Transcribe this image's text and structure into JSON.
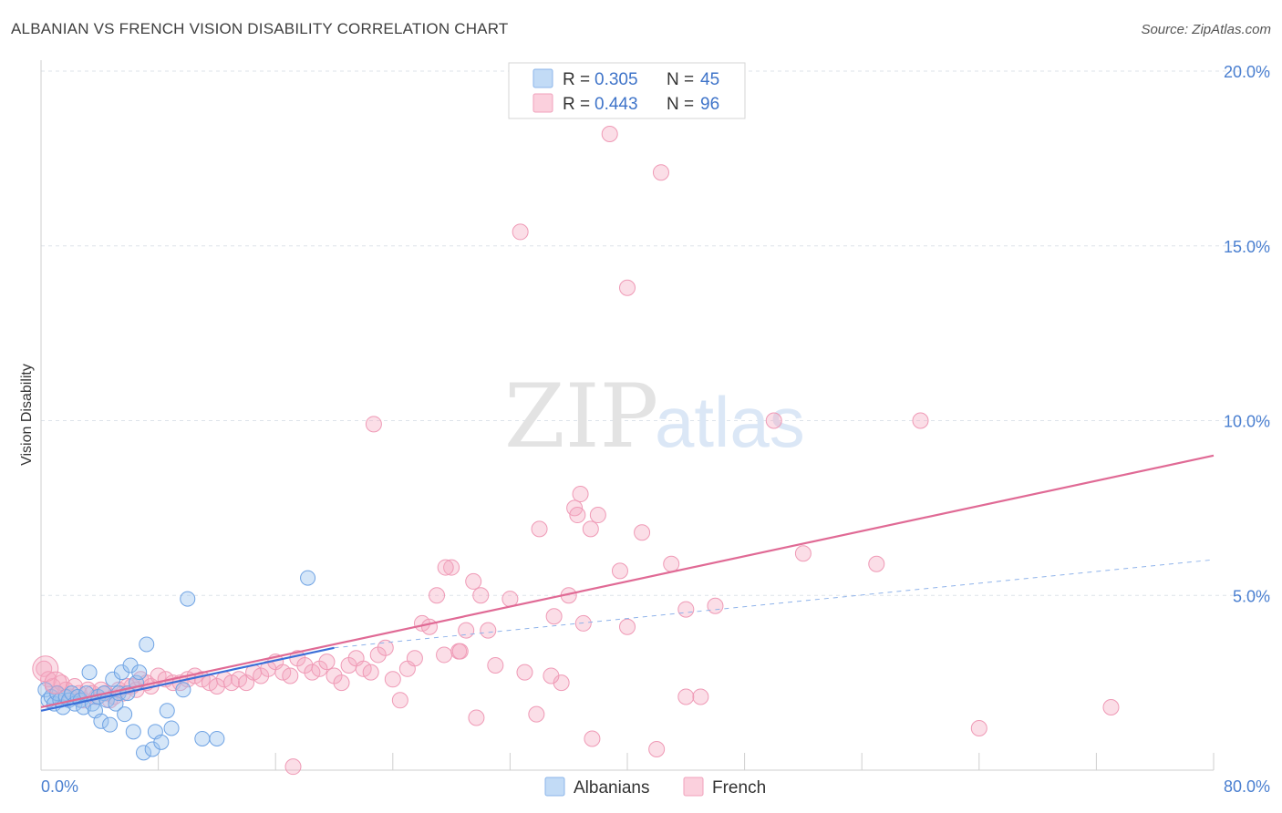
{
  "title": "ALBANIAN VS FRENCH VISION DISABILITY CORRELATION CHART",
  "source": "Source: ZipAtlas.com",
  "watermark": {
    "zip": "ZIP",
    "atlas": "atlas"
  },
  "legend": {
    "r_label": "R =",
    "n_label": "N =",
    "rows": [
      {
        "r": "0.305",
        "n": "45",
        "color": "#9cc3ef"
      },
      {
        "r": "0.443",
        "n": "96",
        "color": "#f5a9c0"
      }
    ]
  },
  "bottom_legend": [
    {
      "label": "Albanians",
      "color": "#9cc3ef"
    },
    {
      "label": "French",
      "color": "#f5a9c0"
    }
  ],
  "colors": {
    "blue_line": "#3a6fd8",
    "pink_line": "#e06a95",
    "grid": "#dde3ea"
  },
  "chart_data": {
    "type": "scatter",
    "xlabel": "",
    "ylabel": "Vision Disability",
    "xlim": [
      0,
      80
    ],
    "ylim": [
      0,
      20
    ],
    "x_tick_labels": [
      "0.0%",
      "80.0%"
    ],
    "y_ticks": [
      5,
      10,
      15,
      20
    ],
    "y_tick_labels": [
      "5.0%",
      "10.0%",
      "15.0%",
      "20.0%"
    ],
    "grid": true,
    "series": [
      {
        "name": "Albanians",
        "color": "#9cc3ef",
        "trend": {
          "x0": 0,
          "y0": 1.7,
          "x1": 20,
          "y1": 3.5
        },
        "points": [
          [
            0.3,
            2.3
          ],
          [
            0.5,
            2.0
          ],
          [
            0.7,
            2.1
          ],
          [
            0.9,
            1.9
          ],
          [
            1.1,
            2.2
          ],
          [
            1.3,
            2.0
          ],
          [
            1.5,
            1.8
          ],
          [
            1.7,
            2.1
          ],
          [
            1.9,
            2.0
          ],
          [
            2.1,
            2.2
          ],
          [
            2.3,
            1.9
          ],
          [
            2.5,
            2.1
          ],
          [
            2.7,
            2.0
          ],
          [
            2.9,
            1.8
          ],
          [
            3.1,
            2.2
          ],
          [
            3.3,
            2.8
          ],
          [
            3.5,
            1.9
          ],
          [
            3.7,
            1.7
          ],
          [
            3.9,
            2.1
          ],
          [
            4.1,
            1.4
          ],
          [
            4.3,
            2.2
          ],
          [
            4.5,
            2.0
          ],
          [
            4.7,
            1.3
          ],
          [
            4.9,
            2.6
          ],
          [
            5.1,
            1.9
          ],
          [
            5.3,
            2.2
          ],
          [
            5.5,
            2.8
          ],
          [
            5.7,
            1.6
          ],
          [
            5.9,
            2.2
          ],
          [
            6.1,
            3.0
          ],
          [
            6.3,
            1.1
          ],
          [
            6.5,
            2.5
          ],
          [
            6.7,
            2.8
          ],
          [
            7.0,
            0.5
          ],
          [
            7.2,
            3.6
          ],
          [
            7.6,
            0.6
          ],
          [
            7.8,
            1.1
          ],
          [
            8.2,
            0.8
          ],
          [
            8.6,
            1.7
          ],
          [
            8.9,
            1.2
          ],
          [
            9.7,
            2.3
          ],
          [
            10.0,
            4.9
          ],
          [
            11.0,
            0.9
          ],
          [
            12.0,
            0.9
          ],
          [
            18.2,
            5.5
          ]
        ]
      },
      {
        "name": "French",
        "color": "#f5a9c0",
        "trend": {
          "x0": 0,
          "y0": 1.8,
          "x1": 80,
          "y1": 9.0
        },
        "points": [
          [
            0.2,
            2.9
          ],
          [
            0.5,
            2.6
          ],
          [
            0.8,
            2.4
          ],
          [
            1.1,
            2.2
          ],
          [
            1.4,
            2.5
          ],
          [
            1.7,
            2.3
          ],
          [
            2.0,
            2.1
          ],
          [
            2.3,
            2.4
          ],
          [
            2.6,
            2.2
          ],
          [
            2.9,
            2.0
          ],
          [
            3.2,
            2.3
          ],
          [
            3.5,
            2.2
          ],
          [
            3.8,
            2.1
          ],
          [
            4.1,
            2.3
          ],
          [
            4.4,
            2.2
          ],
          [
            4.7,
            2.0
          ],
          [
            5.0,
            2.1
          ],
          [
            5.3,
            2.3
          ],
          [
            5.6,
            2.2
          ],
          [
            5.9,
            2.4
          ],
          [
            6.2,
            2.4
          ],
          [
            6.5,
            2.3
          ],
          [
            6.8,
            2.6
          ],
          [
            7.2,
            2.5
          ],
          [
            7.5,
            2.4
          ],
          [
            8.0,
            2.7
          ],
          [
            8.5,
            2.6
          ],
          [
            9.0,
            2.5
          ],
          [
            9.5,
            2.5
          ],
          [
            10.0,
            2.6
          ],
          [
            10.5,
            2.7
          ],
          [
            11.0,
            2.6
          ],
          [
            11.5,
            2.5
          ],
          [
            12.0,
            2.4
          ],
          [
            12.5,
            2.6
          ],
          [
            13.0,
            2.5
          ],
          [
            13.5,
            2.6
          ],
          [
            14.0,
            2.5
          ],
          [
            14.5,
            2.8
          ],
          [
            15.0,
            2.7
          ],
          [
            15.5,
            2.9
          ],
          [
            16.0,
            3.1
          ],
          [
            16.5,
            2.8
          ],
          [
            17.0,
            2.7
          ],
          [
            17.5,
            3.2
          ],
          [
            18.0,
            3.0
          ],
          [
            18.5,
            2.8
          ],
          [
            19.0,
            2.9
          ],
          [
            19.5,
            3.1
          ],
          [
            20.0,
            2.7
          ],
          [
            20.5,
            2.5
          ],
          [
            21.0,
            3.0
          ],
          [
            21.5,
            3.2
          ],
          [
            22.0,
            2.9
          ],
          [
            22.5,
            2.8
          ],
          [
            23.0,
            3.3
          ],
          [
            23.5,
            3.5
          ],
          [
            24.0,
            2.6
          ],
          [
            24.5,
            2.0
          ],
          [
            25.0,
            2.9
          ],
          [
            25.5,
            3.2
          ],
          [
            26.0,
            4.2
          ],
          [
            26.5,
            4.1
          ],
          [
            27.0,
            5.0
          ],
          [
            27.5,
            3.3
          ],
          [
            28.0,
            5.8
          ],
          [
            28.5,
            3.4
          ],
          [
            29.0,
            4.0
          ],
          [
            29.5,
            5.4
          ],
          [
            30.0,
            5.0
          ],
          [
            30.5,
            4.0
          ],
          [
            31.0,
            3.0
          ],
          [
            32.0,
            4.9
          ],
          [
            33.0,
            2.8
          ],
          [
            34.0,
            6.9
          ],
          [
            35.0,
            4.4
          ],
          [
            35.5,
            2.5
          ],
          [
            36.0,
            5.0
          ],
          [
            37.0,
            4.2
          ],
          [
            37.5,
            6.9
          ],
          [
            38.0,
            7.3
          ],
          [
            39.5,
            5.7
          ],
          [
            40.0,
            4.1
          ],
          [
            41.0,
            6.8
          ],
          [
            42.0,
            0.6
          ],
          [
            43.0,
            5.9
          ],
          [
            44.0,
            4.6
          ],
          [
            45.0,
            2.1
          ],
          [
            46.0,
            4.7
          ],
          [
            50.0,
            10.0
          ],
          [
            52.0,
            6.2
          ],
          [
            57.0,
            5.9
          ],
          [
            60.0,
            10.0
          ],
          [
            64.0,
            1.2
          ],
          [
            73.0,
            1.8
          ],
          [
            17.2,
            0.1
          ]
        ],
        "outliers": [
          [
            22.7,
            9.9
          ],
          [
            32.7,
            15.4
          ],
          [
            36.4,
            7.5
          ],
          [
            36.6,
            7.3
          ],
          [
            38.8,
            18.2
          ],
          [
            40.0,
            13.8
          ],
          [
            42.3,
            17.1
          ],
          [
            27.6,
            5.8
          ],
          [
            36.8,
            7.9
          ],
          [
            37.6,
            0.9
          ],
          [
            33.8,
            1.6
          ],
          [
            29.7,
            1.5
          ],
          [
            44.0,
            2.1
          ],
          [
            28.6,
            3.4
          ],
          [
            34.8,
            2.7
          ]
        ]
      }
    ]
  }
}
